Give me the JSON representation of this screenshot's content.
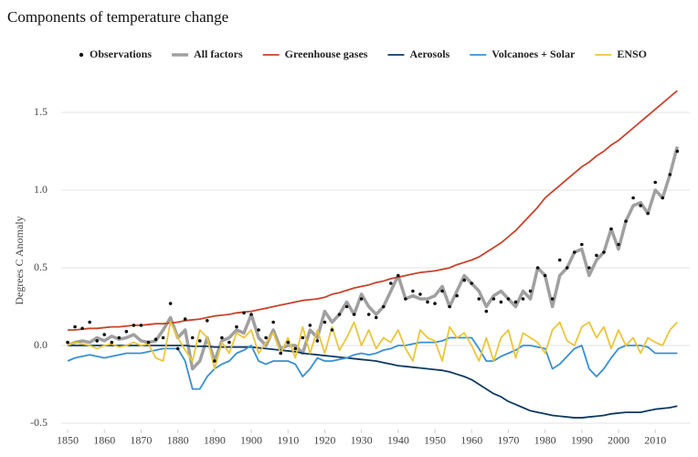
{
  "chart_data": {
    "type": "line",
    "title": "Components of temperature change",
    "y_label": "Degrees C Anomaly",
    "x": [
      1850,
      1852,
      1854,
      1856,
      1858,
      1860,
      1862,
      1864,
      1866,
      1868,
      1870,
      1872,
      1874,
      1876,
      1878,
      1880,
      1882,
      1884,
      1886,
      1888,
      1890,
      1892,
      1894,
      1896,
      1898,
      1900,
      1902,
      1904,
      1906,
      1908,
      1910,
      1912,
      1914,
      1916,
      1918,
      1920,
      1922,
      1924,
      1926,
      1928,
      1930,
      1932,
      1934,
      1936,
      1938,
      1940,
      1942,
      1944,
      1946,
      1948,
      1950,
      1952,
      1954,
      1956,
      1958,
      1960,
      1962,
      1964,
      1966,
      1968,
      1970,
      1972,
      1974,
      1976,
      1978,
      1980,
      1982,
      1984,
      1986,
      1988,
      1990,
      1992,
      1994,
      1996,
      1998,
      2000,
      2002,
      2004,
      2006,
      2008,
      2010,
      2012,
      2014,
      2016
    ],
    "xlim": [
      1848.3,
      2019.4
    ],
    "xticks": [
      1850,
      1860,
      1870,
      1880,
      1890,
      1900,
      1910,
      1920,
      1930,
      1940,
      1950,
      1960,
      1970,
      1980,
      1990,
      2000,
      2010
    ],
    "ylim": [
      -0.54,
      1.66
    ],
    "yticks": [
      -0.5,
      {
        "value": 0,
        "label": "0.0"
      },
      0.5,
      {
        "value": 1,
        "label": "1.0"
      },
      1.5
    ],
    "grid": true,
    "series": [
      {
        "name": "Observations",
        "type": "scatter",
        "color": "#111111",
        "values": [
          0.02,
          0.12,
          0.11,
          0.15,
          0.03,
          0.07,
          0.02,
          0.05,
          0.09,
          0.13,
          0.13,
          0.02,
          0.04,
          0.05,
          0.27,
          -0.02,
          0.17,
          0.05,
          0.03,
          0.16,
          -0.1,
          0.05,
          0.02,
          0.12,
          0.21,
          0.2,
          0.1,
          0.05,
          0.15,
          -0.05,
          0.02,
          -0.02,
          0.05,
          0.13,
          0.03,
          0.15,
          0.1,
          0.2,
          0.25,
          0.2,
          0.3,
          0.2,
          0.18,
          0.25,
          0.4,
          0.45,
          0.3,
          0.35,
          0.33,
          0.28,
          0.27,
          0.35,
          0.25,
          0.32,
          0.42,
          0.4,
          0.3,
          0.22,
          0.3,
          0.28,
          0.3,
          0.28,
          0.3,
          0.35,
          0.5,
          0.45,
          0.3,
          0.55,
          0.5,
          0.6,
          0.65,
          0.5,
          0.58,
          0.6,
          0.75,
          0.65,
          0.8,
          0.95,
          0.9,
          0.85,
          1.05,
          0.95,
          1.1,
          1.25
        ]
      },
      {
        "name": "All factors",
        "type": "line",
        "linewidth": 3.5,
        "color": "#a0a0a0",
        "values": [
          0,
          0.02,
          0.03,
          0.02,
          0.05,
          0.03,
          0.06,
          0.04,
          0.05,
          0.07,
          0.03,
          0.02,
          0.03,
          0.1,
          0.18,
          0.05,
          0.1,
          -0.15,
          -0.1,
          0.05,
          -0.1,
          0.03,
          0.05,
          0.1,
          0.08,
          0.2,
          0.05,
          0,
          0.1,
          -0.02,
          0,
          0,
          -0.05,
          0.1,
          0.05,
          0.22,
          0.15,
          0.2,
          0.28,
          0.2,
          0.33,
          0.25,
          0.2,
          0.25,
          0.35,
          0.45,
          0.3,
          0.32,
          0.3,
          0.3,
          0.32,
          0.38,
          0.25,
          0.35,
          0.45,
          0.4,
          0.35,
          0.25,
          0.32,
          0.35,
          0.3,
          0.25,
          0.35,
          0.3,
          0.5,
          0.45,
          0.25,
          0.45,
          0.5,
          0.6,
          0.62,
          0.45,
          0.55,
          0.6,
          0.75,
          0.62,
          0.8,
          0.9,
          0.92,
          0.85,
          1.0,
          0.95,
          1.1,
          1.28
        ]
      },
      {
        "name": "Greenhouse gases",
        "type": "line",
        "linewidth": 1.8,
        "color": "#c9432c",
        "values": [
          0.1,
          0.1,
          0.105,
          0.11,
          0.11,
          0.115,
          0.12,
          0.12,
          0.125,
          0.13,
          0.13,
          0.135,
          0.14,
          0.14,
          0.145,
          0.15,
          0.16,
          0.165,
          0.17,
          0.18,
          0.19,
          0.195,
          0.2,
          0.21,
          0.215,
          0.22,
          0.23,
          0.24,
          0.25,
          0.26,
          0.27,
          0.28,
          0.29,
          0.295,
          0.3,
          0.31,
          0.33,
          0.34,
          0.355,
          0.37,
          0.38,
          0.39,
          0.405,
          0.415,
          0.43,
          0.44,
          0.45,
          0.46,
          0.47,
          0.475,
          0.48,
          0.49,
          0.5,
          0.52,
          0.535,
          0.55,
          0.57,
          0.6,
          0.63,
          0.66,
          0.7,
          0.74,
          0.79,
          0.84,
          0.89,
          0.95,
          0.99,
          1.03,
          1.07,
          1.11,
          1.15,
          1.18,
          1.22,
          1.25,
          1.29,
          1.32,
          1.36,
          1.4,
          1.44,
          1.48,
          1.52,
          1.56,
          1.6,
          1.64
        ]
      },
      {
        "name": "Aerosols",
        "type": "line",
        "linewidth": 1.8,
        "color": "#0e3a63",
        "values": [
          0,
          0,
          0,
          0,
          0,
          0,
          0,
          0,
          0,
          0,
          0,
          0,
          0,
          0,
          0,
          0,
          0,
          -0.005,
          -0.005,
          -0.005,
          -0.01,
          -0.01,
          -0.01,
          -0.01,
          -0.01,
          -0.01,
          -0.015,
          -0.02,
          -0.025,
          -0.03,
          -0.035,
          -0.04,
          -0.05,
          -0.055,
          -0.06,
          -0.065,
          -0.07,
          -0.075,
          -0.08,
          -0.085,
          -0.09,
          -0.095,
          -0.1,
          -0.11,
          -0.12,
          -0.13,
          -0.135,
          -0.14,
          -0.145,
          -0.15,
          -0.155,
          -0.16,
          -0.17,
          -0.185,
          -0.2,
          -0.22,
          -0.25,
          -0.28,
          -0.31,
          -0.33,
          -0.36,
          -0.38,
          -0.4,
          -0.42,
          -0.43,
          -0.44,
          -0.45,
          -0.455,
          -0.46,
          -0.465,
          -0.465,
          -0.46,
          -0.455,
          -0.45,
          -0.44,
          -0.435,
          -0.43,
          -0.43,
          -0.43,
          -0.42,
          -0.41,
          -0.405,
          -0.4,
          -0.39
        ]
      },
      {
        "name": "Volcanoes + Solar",
        "type": "line",
        "linewidth": 1.8,
        "color": "#3a90d0",
        "values": [
          -0.1,
          -0.08,
          -0.07,
          -0.06,
          -0.07,
          -0.08,
          -0.07,
          -0.06,
          -0.05,
          -0.05,
          -0.05,
          -0.04,
          -0.03,
          -0.02,
          -0.02,
          -0.02,
          -0.1,
          -0.28,
          -0.28,
          -0.2,
          -0.15,
          -0.12,
          -0.1,
          -0.05,
          -0.03,
          0,
          -0.1,
          -0.12,
          -0.1,
          -0.1,
          -0.1,
          -0.12,
          -0.2,
          -0.15,
          -0.08,
          -0.1,
          -0.1,
          -0.09,
          -0.08,
          -0.06,
          -0.05,
          -0.06,
          -0.05,
          -0.03,
          -0.02,
          0,
          0,
          0.01,
          0.02,
          0.02,
          0.02,
          0.03,
          0.05,
          0.05,
          0.05,
          0.05,
          -0.02,
          -0.1,
          -0.1,
          -0.07,
          -0.05,
          -0.03,
          0,
          0,
          -0.01,
          -0.02,
          -0.15,
          -0.12,
          -0.07,
          -0.02,
          0,
          -0.15,
          -0.2,
          -0.15,
          -0.08,
          -0.02,
          0,
          0,
          0,
          -0.01,
          -0.05,
          -0.05,
          -0.05,
          -0.05
        ]
      },
      {
        "name": "ENSO",
        "type": "line",
        "linewidth": 1.8,
        "color": "#ecc63b",
        "values": [
          0,
          0.02,
          0.01,
          0,
          -0.02,
          0,
          0.01,
          -0.01,
          0,
          0.02,
          0,
          0.01,
          -0.08,
          -0.1,
          0.15,
          0.05,
          -0.03,
          -0.1,
          0.1,
          0.05,
          -0.15,
          0.02,
          -0.05,
          0.08,
          0.05,
          0.1,
          -0.05,
          0.02,
          0.08,
          -0.05,
          0.05,
          -0.08,
          0.12,
          -0.05,
          0.1,
          -0.05,
          0.12,
          -0.03,
          0.05,
          0.15,
          0,
          0.1,
          -0.02,
          0.05,
          0.02,
          0.1,
          -0.02,
          -0.1,
          0.1,
          0.05,
          0.03,
          -0.1,
          0.12,
          0.05,
          0.08,
          0,
          -0.1,
          0.05,
          -0.1,
          0.05,
          0.1,
          -0.08,
          0.08,
          0.05,
          0.02,
          -0.05,
          0.1,
          0.15,
          0.03,
          0,
          0.12,
          0.15,
          0.05,
          0.12,
          -0.02,
          0.1,
          0,
          0.05,
          -0.05,
          0.05,
          0.02,
          0,
          0.1,
          0.15
        ]
      }
    ]
  }
}
